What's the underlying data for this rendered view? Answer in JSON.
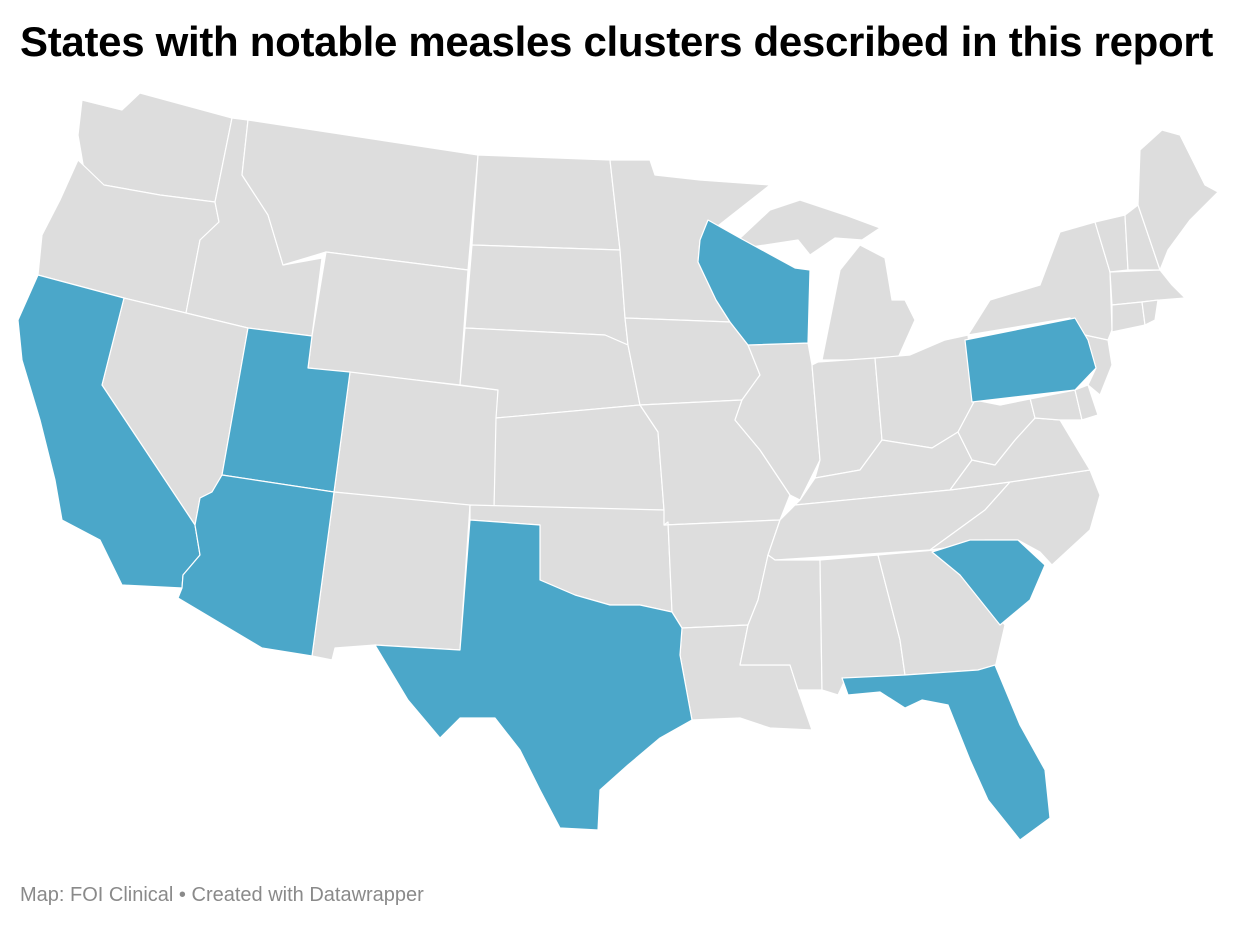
{
  "title": "States with notable measles clusters described in this report",
  "footer": {
    "source": "Map: FOI Clinical",
    "separator": " • ",
    "credit": "Created with Datawrapper"
  },
  "colors": {
    "highlight": "#4ba7c9",
    "base": "#dddddd",
    "border": "#ffffff"
  },
  "map": {
    "region": "Contiguous United States",
    "highlighted_states": [
      "California",
      "Utah",
      "Arizona",
      "Texas",
      "Wisconsin",
      "Pennsylvania",
      "South Carolina",
      "Florida"
    ]
  }
}
